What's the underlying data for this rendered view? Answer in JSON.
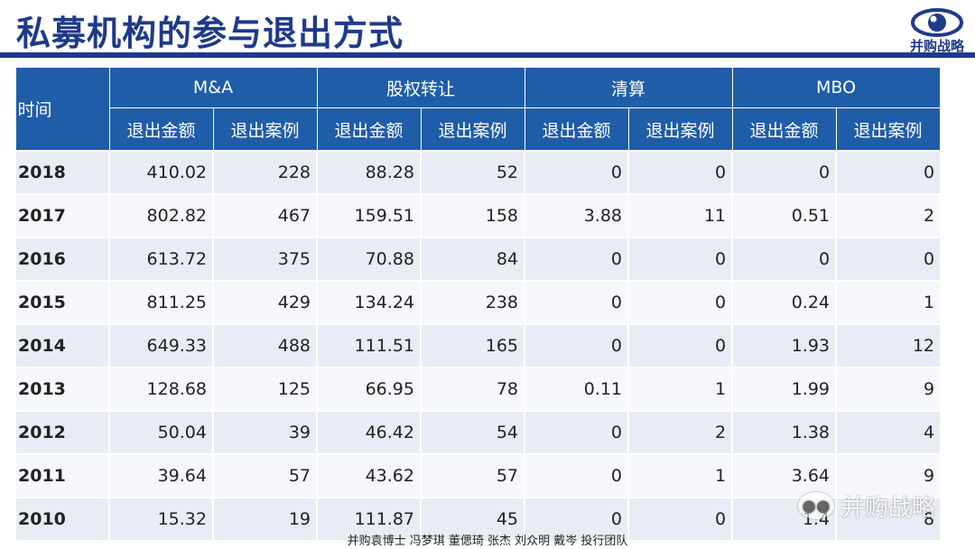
{
  "page": {
    "title": "私募机构的参与退出方式",
    "logo_text": "并购战略",
    "footer": "并购袁博士 冯梦琪 董偲琦 张杰 刘众明 戴岑 投行团队",
    "watermark": "并购战略"
  },
  "table": {
    "time_header": "时间",
    "groups": [
      "M&A",
      "股权转让",
      "清算",
      "MBO"
    ],
    "sub_headers": [
      "退出金额",
      "退出案例",
      "退出金额",
      "退出案例",
      "退出金额",
      "退出案例",
      "退出金额",
      "退出案例"
    ],
    "rows": [
      {
        "year": "2018",
        "cells": [
          "410.02",
          "228",
          "88.28",
          "52",
          "0",
          "0",
          "0",
          "0"
        ]
      },
      {
        "year": "2017",
        "cells": [
          "802.82",
          "467",
          "159.51",
          "158",
          "3.88",
          "11",
          "0.51",
          "2"
        ]
      },
      {
        "year": "2016",
        "cells": [
          "613.72",
          "375",
          "70.88",
          "84",
          "0",
          "0",
          "0",
          "0"
        ]
      },
      {
        "year": "2015",
        "cells": [
          "811.25",
          "429",
          "134.24",
          "238",
          "0",
          "0",
          "0.24",
          "1"
        ]
      },
      {
        "year": "2014",
        "cells": [
          "649.33",
          "488",
          "111.51",
          "165",
          "0",
          "0",
          "1.93",
          "12"
        ]
      },
      {
        "year": "2013",
        "cells": [
          "128.68",
          "125",
          "66.95",
          "78",
          "0.11",
          "1",
          "1.99",
          "9"
        ]
      },
      {
        "year": "2012",
        "cells": [
          "50.04",
          "39",
          "46.42",
          "54",
          "0",
          "2",
          "1.38",
          "4"
        ]
      },
      {
        "year": "2011",
        "cells": [
          "39.64",
          "57",
          "43.62",
          "57",
          "0",
          "1",
          "3.64",
          "9"
        ]
      },
      {
        "year": "2010",
        "cells": [
          "15.32",
          "19",
          "111.87",
          "45",
          "0",
          "0",
          "1.4",
          "8"
        ]
      }
    ]
  },
  "colors": {
    "brand": "#1f3a8a",
    "header_bg": "#1f5da8",
    "row_odd": "#e9ecf4",
    "row_even": "#f6f7fb"
  },
  "icons": {
    "logo": "eye-icon",
    "watermark": "wechat-icon"
  }
}
